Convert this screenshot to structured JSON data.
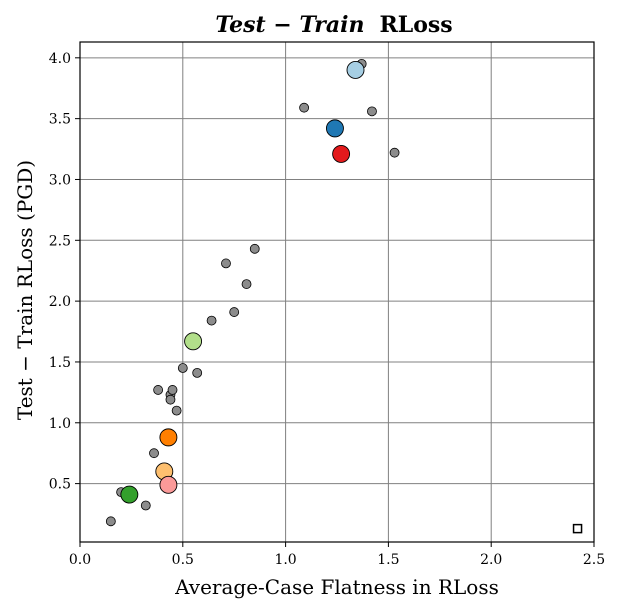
{
  "chart_data": {
    "type": "scatter",
    "title_italic": "Test − Train",
    "title_suffix": "RLoss",
    "xlabel": "Average-Case Flatness in RLoss",
    "ylabel": "Test − Train RLoss (PGD)",
    "xlim": [
      0.0,
      2.5
    ],
    "ylim": [
      0.02,
      4.13
    ],
    "xticks": [
      "0.0",
      "0.5",
      "1.0",
      "1.5",
      "2.0",
      "2.5"
    ],
    "yticks": [
      "0.5",
      "1.0",
      "1.5",
      "2.0",
      "2.5",
      "3.0",
      "3.5",
      "4.0"
    ],
    "grid": true,
    "small_points": [
      {
        "x": 0.15,
        "y": 0.19
      },
      {
        "x": 0.2,
        "y": 0.43
      },
      {
        "x": 0.32,
        "y": 0.32
      },
      {
        "x": 0.36,
        "y": 0.75
      },
      {
        "x": 0.38,
        "y": 1.27
      },
      {
        "x": 0.44,
        "y": 1.23
      },
      {
        "x": 0.44,
        "y": 1.19
      },
      {
        "x": 0.45,
        "y": 1.27
      },
      {
        "x": 0.47,
        "y": 1.1
      },
      {
        "x": 0.5,
        "y": 1.45
      },
      {
        "x": 0.57,
        "y": 1.41
      },
      {
        "x": 0.64,
        "y": 1.84
      },
      {
        "x": 0.71,
        "y": 2.31
      },
      {
        "x": 0.75,
        "y": 1.91
      },
      {
        "x": 0.81,
        "y": 2.14
      },
      {
        "x": 0.85,
        "y": 2.43
      },
      {
        "x": 1.09,
        "y": 3.59
      },
      {
        "x": 1.37,
        "y": 3.95
      },
      {
        "x": 1.42,
        "y": 3.56
      },
      {
        "x": 1.53,
        "y": 3.22
      }
    ],
    "highlighted_points": [
      {
        "x": 1.34,
        "y": 3.9,
        "color": "#a6cee3"
      },
      {
        "x": 1.24,
        "y": 3.42,
        "color": "#1f78b4"
      },
      {
        "x": 1.27,
        "y": 3.21,
        "color": "#e31a1c"
      },
      {
        "x": 0.55,
        "y": 1.67,
        "color": "#b2df8a"
      },
      {
        "x": 0.43,
        "y": 0.88,
        "color": "#ff7f00"
      },
      {
        "x": 0.41,
        "y": 0.6,
        "color": "#fdbf6f"
      },
      {
        "x": 0.43,
        "y": 0.49,
        "color": "#fb9a99"
      },
      {
        "x": 0.24,
        "y": 0.41,
        "color": "#33a02c"
      }
    ],
    "small_point_color": "#8c8c8c",
    "corner_marker": {
      "x": 2.42,
      "y": 0.13,
      "shape": "square"
    }
  }
}
